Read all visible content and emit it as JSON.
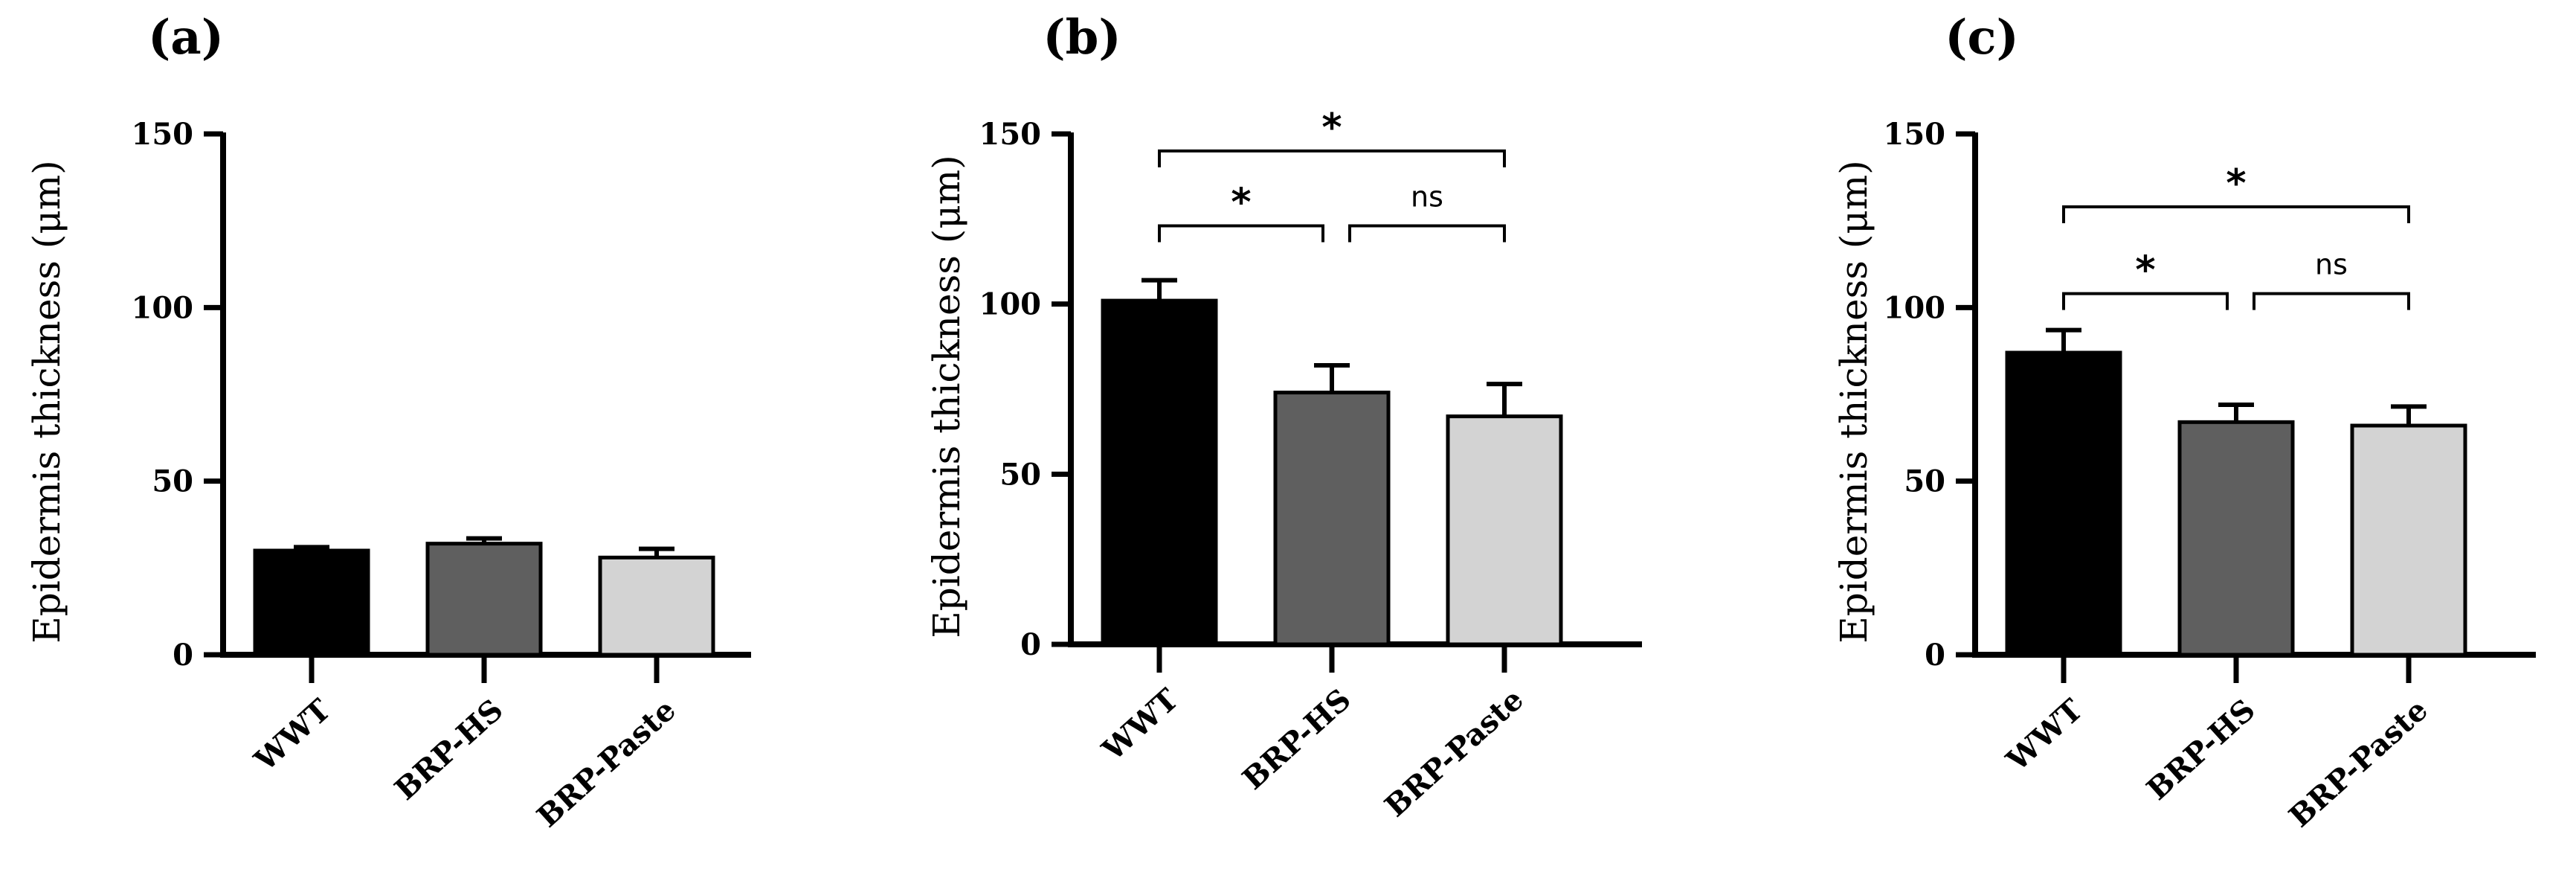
{
  "chart_data": [
    {
      "panel": "(a)",
      "type": "bar",
      "ylabel": "Epidermis thickness  (μm)",
      "ylim": [
        0,
        150
      ],
      "yticks": [
        "0",
        "50",
        "100",
        "150"
      ],
      "categories": [
        "WWT",
        "BRP-HS",
        "BRP-Paste"
      ],
      "values": [
        30,
        32,
        28
      ],
      "errors": [
        1,
        1.5,
        2.5
      ],
      "colors": [
        "#000000",
        "#5f5f5f",
        "#d3d3d3"
      ],
      "significance": []
    },
    {
      "panel": "(b)",
      "type": "bar",
      "ylabel": "Epidermis thickness  (μm)",
      "ylim": [
        0,
        150
      ],
      "yticks": [
        "0",
        "50",
        "100",
        "150"
      ],
      "categories": [
        "WWT",
        "BRP-HS",
        "BRP-Paste"
      ],
      "values": [
        101,
        74,
        67
      ],
      "errors": [
        6,
        8,
        9.5
      ],
      "colors": [
        "#000000",
        "#5f5f5f",
        "#d3d3d3"
      ],
      "significance": [
        {
          "from": 0,
          "to": 2,
          "label": "*",
          "y": 145
        },
        {
          "from": 0,
          "to": 1,
          "label": "*",
          "y": 123
        },
        {
          "from": 1,
          "to": 2,
          "label": "ns",
          "y": 123
        }
      ]
    },
    {
      "panel": "(c)",
      "type": "bar",
      "ylabel": "Epidermis thickness  (μm)",
      "ylim": [
        0,
        150
      ],
      "yticks": [
        "0",
        "50",
        "100",
        "150"
      ],
      "categories": [
        "WWT",
        "BRP-HS",
        "BRP-Paste"
      ],
      "values": [
        87,
        67,
        66
      ],
      "errors": [
        6.5,
        5,
        5.5
      ],
      "colors": [
        "#000000",
        "#5f5f5f",
        "#d3d3d3"
      ],
      "significance": [
        {
          "from": 0,
          "to": 2,
          "label": "*",
          "y": 129
        },
        {
          "from": 0,
          "to": 1,
          "label": "*",
          "y": 104
        },
        {
          "from": 1,
          "to": 2,
          "label": "ns",
          "y": 104
        }
      ]
    }
  ]
}
